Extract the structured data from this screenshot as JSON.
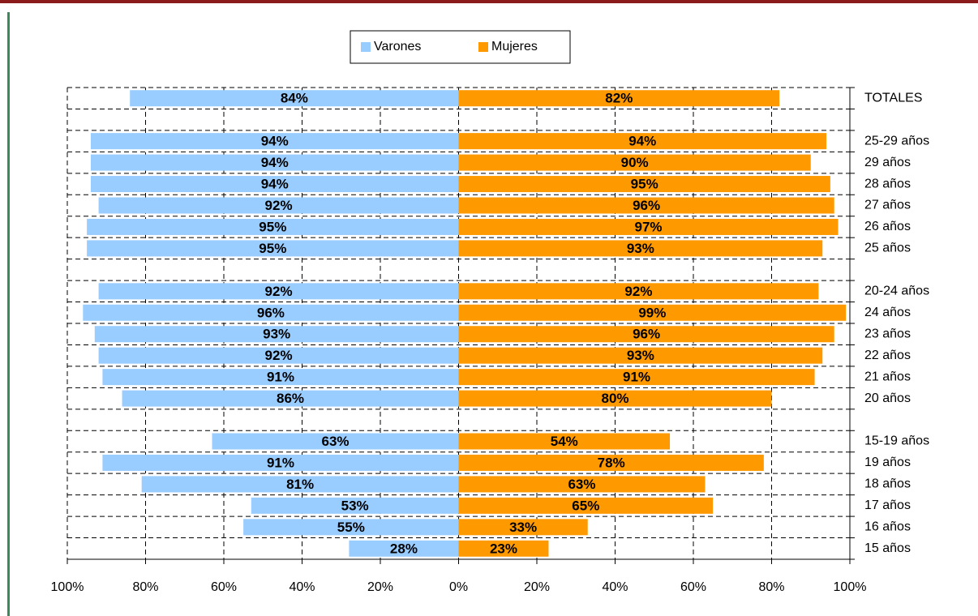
{
  "chart_data": {
    "type": "butterfly_bar",
    "categories": [
      "TOTALES",
      null,
      "25-29 años",
      "29 años",
      "28 años",
      "27 años",
      "26 años",
      "25 años",
      null,
      "20-24 años",
      "24 años",
      "23 años",
      "22 años",
      "21 años",
      "20 años",
      null,
      "15-19 años",
      "19 años",
      "18 años",
      "17 años",
      "16 años",
      "15 años"
    ],
    "series": [
      {
        "name": "Varones",
        "color": "#99ccff",
        "side": "left",
        "values": [
          84,
          null,
          94,
          94,
          94,
          92,
          95,
          95,
          null,
          92,
          96,
          93,
          92,
          91,
          86,
          null,
          63,
          91,
          81,
          53,
          55,
          28
        ],
        "value_labels": [
          "84%",
          null,
          "94%",
          "94%",
          "94%",
          "92%",
          "95%",
          "95%",
          null,
          "92%",
          "96%",
          "93%",
          "92%",
          "91%",
          "86%",
          null,
          "63%",
          "91%",
          "81%",
          "53%",
          "55%",
          "28%"
        ]
      },
      {
        "name": "Mujeres",
        "color": "#ff9900",
        "side": "right",
        "values": [
          82,
          null,
          94,
          90,
          95,
          96,
          97,
          93,
          null,
          92,
          99,
          96,
          93,
          91,
          80,
          null,
          54,
          78,
          63,
          65,
          33,
          23
        ],
        "value_labels": [
          "82%",
          null,
          "94%",
          "90%",
          "95%",
          "96%",
          "97%",
          "93%",
          null,
          "92%",
          "99%",
          "96%",
          "93%",
          "91%",
          "80%",
          null,
          "54%",
          "78%",
          "63%",
          "65%",
          "33%",
          "23%"
        ]
      }
    ],
    "xlim": [
      -100,
      100
    ],
    "xticks": [
      {
        "value": -100,
        "label": "100%"
      },
      {
        "value": -80,
        "label": "80%"
      },
      {
        "value": -60,
        "label": "60%"
      },
      {
        "value": -40,
        "label": "40%"
      },
      {
        "value": -20,
        "label": "20%"
      },
      {
        "value": 0,
        "label": "0%"
      },
      {
        "value": 20,
        "label": "20%"
      },
      {
        "value": 40,
        "label": "40%"
      },
      {
        "value": 60,
        "label": "60%"
      },
      {
        "value": 80,
        "label": "80%"
      },
      {
        "value": 100,
        "label": "100%"
      }
    ],
    "grid": true,
    "legend": "top"
  }
}
